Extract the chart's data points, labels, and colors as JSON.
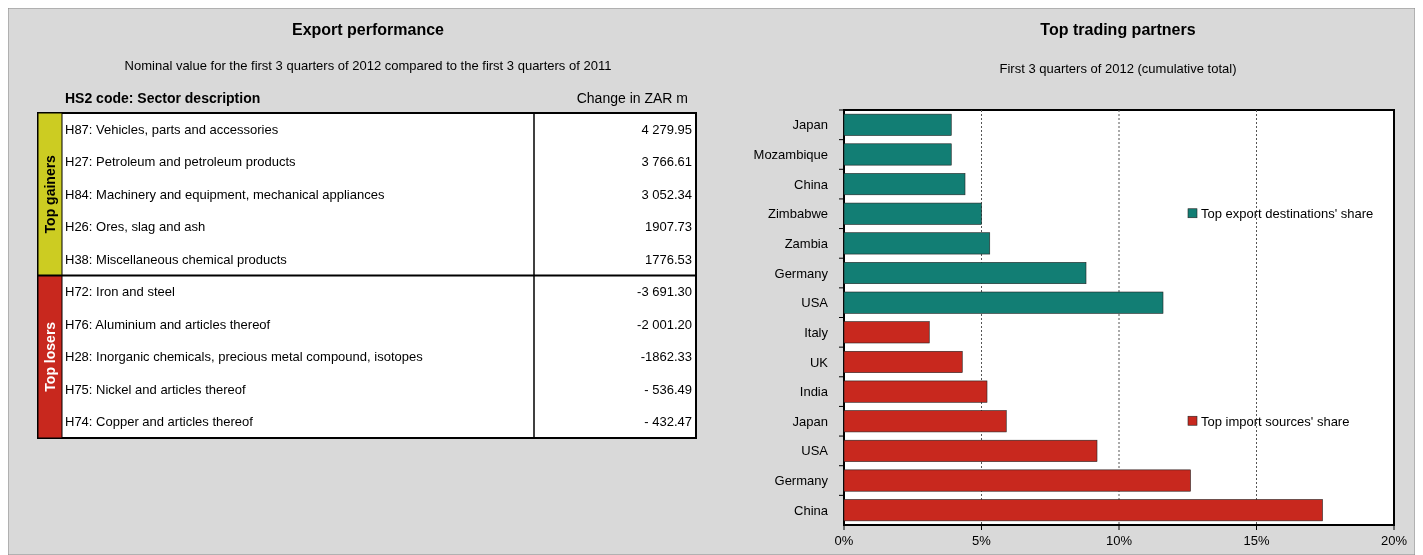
{
  "chart_data": [
    {
      "type": "other",
      "title": "Export performance",
      "subtitle": "Nominal value for the first 3 quarters of 2012 compared to the first 3 quarters of 2011",
      "annotations": [
        "HS2 code: Sector description",
        "Change in ZAR m",
        "Top gainers",
        "Top losers"
      ],
      "categories": [
        "H87: Vehicles, parts and accessories",
        "H27: Petroleum and petroleum products",
        "H84: Machinery and equipment, mechanical appliances",
        "H26: Ores, slag and ash",
        "H38: Miscellaneous chemical products",
        "H72: Iron and steel",
        "H76: Aluminium and articles thereof",
        "H28: Inorganic chemicals, precious metal compound, isotopes",
        "H75: Nickel and articles thereof",
        "H74: Copper and articles thereof"
      ],
      "values": [
        4279.95,
        3766.61,
        3052.34,
        1907.73,
        1776.53,
        -3691.3,
        -2001.2,
        -1862.33,
        -536.49,
        -432.47
      ],
      "value_labels": [
        "4 279.95",
        "3 766.61",
        "3 052.34",
        "1907.73",
        "1776.53",
        "-3 691.30",
        "-2 001.20",
        "-1862.33",
        "- 536.49",
        "- 432.47"
      ]
    },
    {
      "type": "bar",
      "orientation": "horizontal",
      "title": "Top trading partners",
      "subtitle": "First 3 quarters of 2012 (cumulative total)",
      "categories": [
        "Japan",
        "Mozambique",
        "China",
        "Zimbabwe",
        "Zambia",
        "Germany",
        "USA",
        "Italy",
        "UK",
        "India",
        "Japan",
        "USA",
        "Germany",
        "China"
      ],
      "series": [
        {
          "name": "Top export destinations' share",
          "color": "#127e74",
          "values": [
            3.9,
            3.9,
            4.4,
            5.0,
            5.3,
            8.8,
            11.6,
            null,
            null,
            null,
            null,
            null,
            null,
            null
          ]
        },
        {
          "name": "Top import sources' share",
          "color": "#c8281e",
          "values": [
            null,
            null,
            null,
            null,
            null,
            null,
            null,
            3.1,
            4.3,
            5.2,
            5.9,
            9.2,
            12.6,
            17.4
          ]
        }
      ],
      "xlim": [
        0,
        20
      ],
      "xticks": [
        {
          "value": 0,
          "label": "0%"
        },
        {
          "value": 5,
          "label": "5%"
        },
        {
          "value": 10,
          "label": "10%"
        },
        {
          "value": 15,
          "label": "15%"
        },
        {
          "value": 20,
          "label": "20%"
        }
      ],
      "grid": "x",
      "legend": "right"
    }
  ]
}
